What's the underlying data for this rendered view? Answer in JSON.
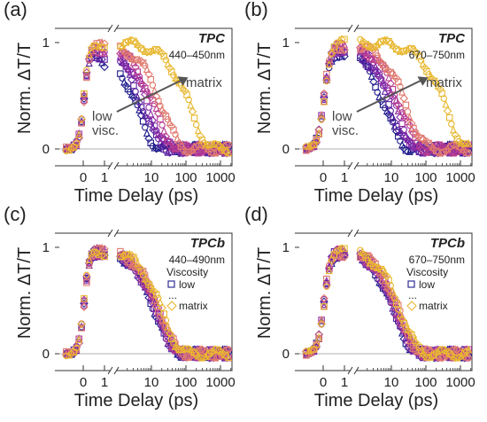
{
  "chart_data": [
    {
      "panel": "(a)",
      "type": "scatter",
      "compound": "TPC",
      "wavelength": "440–450nm",
      "xlabel": "Time Delay (ps)",
      "ylabel": "Norm. ΔT/T",
      "x_axis": "linear from -1 to 1 ps, broken, then log from 1 to 2000 ps",
      "yticks": [
        "0",
        "1"
      ],
      "xticks": [
        "0",
        "1",
        "10",
        "100",
        "1000"
      ],
      "annotations": [
        "low visc.",
        "matrix"
      ],
      "series": [
        {
          "color": "#1e1b8c",
          "decay_ps": 4,
          "rise_ps": 0.25
        },
        {
          "color": "#5a20a0",
          "decay_ps": 6,
          "rise_ps": 0.25
        },
        {
          "color": "#8a2aa6",
          "decay_ps": 9,
          "rise_ps": 0.25
        },
        {
          "color": "#b83b91",
          "decay_ps": 13,
          "rise_ps": 0.25
        },
        {
          "color": "#e07a6e",
          "decay_ps": 22,
          "rise_ps": 0.25
        },
        {
          "color": "#e8b830",
          "decay_ps": 140,
          "rise_ps": 0.25
        }
      ]
    },
    {
      "panel": "(b)",
      "type": "scatter",
      "compound": "TPC",
      "wavelength": "670–750nm",
      "xlabel": "Time Delay (ps)",
      "ylabel": "Norm. ΔT/T",
      "yticks": [
        "0",
        "1"
      ],
      "xticks": [
        "0",
        "1",
        "10",
        "100",
        "1000"
      ],
      "annotations": [
        "low visc.",
        "matrix"
      ],
      "series": [
        {
          "color": "#1e1b8c",
          "decay_ps": 7,
          "rise_ps": 0.3
        },
        {
          "color": "#5a20a0",
          "decay_ps": 10,
          "rise_ps": 0.3
        },
        {
          "color": "#8a2aa6",
          "decay_ps": 14,
          "rise_ps": 0.3
        },
        {
          "color": "#b83b91",
          "decay_ps": 20,
          "rise_ps": 0.3
        },
        {
          "color": "#e07a6e",
          "decay_ps": 30,
          "rise_ps": 0.3
        },
        {
          "color": "#e8b830",
          "decay_ps": 400,
          "rise_ps": 0.3
        }
      ]
    },
    {
      "panel": "(c)",
      "type": "scatter",
      "compound": "TPCb",
      "wavelength": "440–490nm",
      "xlabel": "Time Delay (ps)",
      "ylabel": "Norm. ΔT/T",
      "yticks": [
        "0",
        "1"
      ],
      "xticks": [
        "0",
        "1",
        "10",
        "100",
        "1000"
      ],
      "legend": {
        "title": "Viscosity",
        "low": "low",
        "ellipsis": "...",
        "matrix": "matrix"
      },
      "series": [
        {
          "color": "#1e1b8c",
          "decay_ps": 14,
          "rise_ps": 0.25
        },
        {
          "color": "#5a20a0",
          "decay_ps": 15,
          "rise_ps": 0.25
        },
        {
          "color": "#8a2aa6",
          "decay_ps": 16,
          "rise_ps": 0.25
        },
        {
          "color": "#b83b91",
          "decay_ps": 17,
          "rise_ps": 0.25
        },
        {
          "color": "#e07a6e",
          "decay_ps": 19,
          "rise_ps": 0.25
        },
        {
          "color": "#e8b830",
          "decay_ps": 22,
          "rise_ps": 0.25
        }
      ]
    },
    {
      "panel": "(d)",
      "type": "scatter",
      "compound": "TPCb",
      "wavelength": "670–750nm",
      "xlabel": "Time Delay (ps)",
      "ylabel": "Norm. ΔT/T",
      "yticks": [
        "0",
        "1"
      ],
      "xticks": [
        "0",
        "1",
        "10",
        "100",
        "1000"
      ],
      "legend": {
        "title": "Viscosity",
        "low": "low",
        "ellipsis": "...",
        "matrix": "matrix"
      },
      "series": [
        {
          "color": "#1e1b8c",
          "decay_ps": 13,
          "rise_ps": 0.3
        },
        {
          "color": "#5a20a0",
          "decay_ps": 14,
          "rise_ps": 0.3
        },
        {
          "color": "#8a2aa6",
          "decay_ps": 15,
          "rise_ps": 0.3
        },
        {
          "color": "#b83b91",
          "decay_ps": 16,
          "rise_ps": 0.3
        },
        {
          "color": "#e07a6e",
          "decay_ps": 18,
          "rise_ps": 0.3
        },
        {
          "color": "#e8b830",
          "decay_ps": 20,
          "rise_ps": 0.3
        }
      ]
    }
  ]
}
